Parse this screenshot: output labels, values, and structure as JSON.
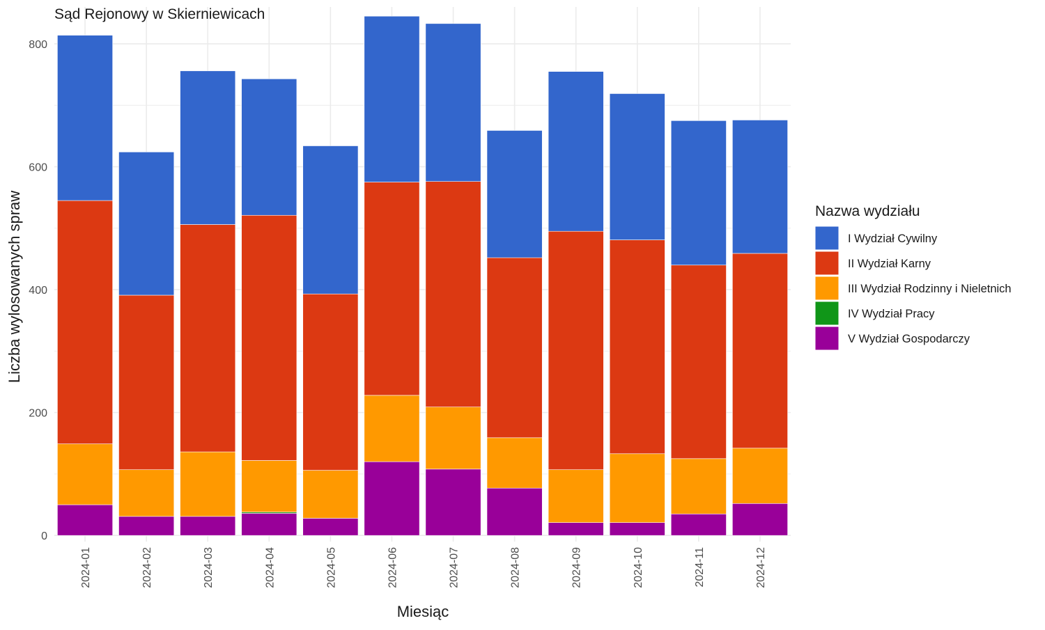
{
  "chart_data": {
    "type": "bar",
    "stacked": true,
    "title": "Sąd Rejonowy w Skierniewicach",
    "xlabel": "Miesiąc",
    "ylabel": "Liczba wylosowanych spraw",
    "ylim": [
      -10,
      860
    ],
    "yticks": [
      0,
      200,
      400,
      600,
      800
    ],
    "grid": true,
    "legend_title": "Nazwa wydziału",
    "legend_position": "right",
    "categories": [
      "2024-01",
      "2024-02",
      "2024-03",
      "2024-04",
      "2024-05",
      "2024-06",
      "2024-07",
      "2024-08",
      "2024-09",
      "2024-10",
      "2024-11",
      "2024-12"
    ],
    "series": [
      {
        "name": "V Wydział Gospodarczy",
        "color": "#990099",
        "values": [
          50,
          31,
          31,
          36,
          28,
          120,
          108,
          77,
          21,
          21,
          35,
          52
        ]
      },
      {
        "name": "IV Wydział Pracy",
        "color": "#109618",
        "values": [
          0,
          0,
          0,
          2,
          0,
          0,
          0,
          0,
          0,
          0,
          0,
          0
        ]
      },
      {
        "name": "III Wydział Rodzinny i Nieletnich",
        "color": "#ff9900",
        "values": [
          99,
          76,
          105,
          84,
          78,
          108,
          101,
          82,
          86,
          112,
          90,
          90
        ]
      },
      {
        "name": "II Wydział Karny",
        "color": "#dc3912",
        "values": [
          396,
          284,
          370,
          399,
          287,
          347,
          367,
          293,
          388,
          348,
          315,
          317
        ]
      },
      {
        "name": "I Wydział Cywilny",
        "color": "#3366cc",
        "values": [
          269,
          233,
          250,
          222,
          241,
          270,
          257,
          207,
          260,
          238,
          235,
          217
        ]
      }
    ],
    "legend_order": [
      "I Wydział Cywilny",
      "II Wydział Karny",
      "III Wydział Rodzinny i Nieletnich",
      "IV Wydział Pracy",
      "V Wydział Gospodarczy"
    ]
  }
}
